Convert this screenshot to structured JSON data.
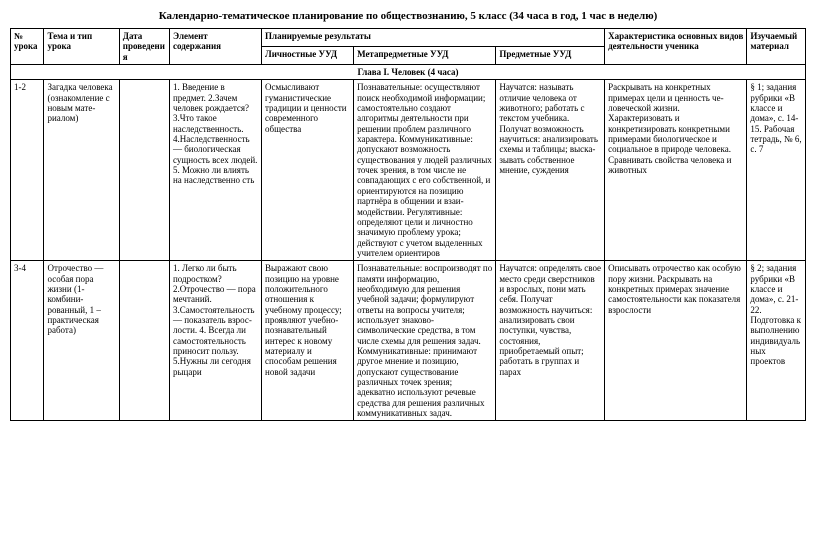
{
  "title": "Календарно-тематическое планирование по обществознанию, 5 класс  (34 часа в год, 1 час в неделю)",
  "headers": {
    "num": "№ урока",
    "topic": "Тема и тип урока",
    "date": "Дата проведения",
    "element": "Элемент содержания",
    "planned": "Планируемые результаты",
    "personal": "Личностные УУД",
    "meta": "Метапредметные УУД",
    "subject": "Предметные УУД",
    "activity": "Характеристика основных видов деятельности ученика",
    "material": "Изучаемый материал"
  },
  "chapter": "Глава I. Человек  (4 часа)",
  "rows": [
    {
      "num": "1-2",
      "topic": "Загадка че­ловека (ознакомление с новым мате­риалом)",
      "date": "",
      "element": "1.  Введение в предмет. 2.Зачем человек рождается? 3.Что такое наследственность. 4.Наследствен­ность — биологическая сущность всех лю­дей. 5. Можно ли влиять на  наследственно сть",
      "personal": "Осмысливают гуманистические традиции и цен­ности современ­ного общества",
      "meta": "Познавательные: осуществляют поиск необходимой информации; самостоятельно создают алгоритмы деятельности при решении проблем различного характера. Коммуникативные: допускают возможность существования у людей различных точек зрения, в том числе не совпадающих с его собственной, и ориентируются на позицию партнёра в общении и взаи­модействии.  Регулятивные: определяют цели и личностно значимую проблему урока; действуют с учетом выделенных учителем ориентиров",
      "subject": "Научатся: называть отличие человека от животного; работать с текстом учебника. Получат возможность научиться: анализировать схемы и таблицы; выска­зывать собственное мнение, суждения",
      "activity": "Раскрывать на конкретных примерах цели и ценность че­ловеческой жизни. Характеризовать и конкретизировать конкретными примерами биологическое и социальное в природе человека. Сравнивать свойства человека и животных",
      "material": "§ 1; за­дания рубрики «В классе и дома», с. 14-15. Рабочая тетрадь, № 6, с. 7"
    },
    {
      "num": "3-4",
      "topic": "Отрочество — особая пора жизни (1-комбини-рованный, 1 – практическая работа)",
      "date": "",
      "element": "1. Легко ли быть подростком? 2.Отрочество — пора мечтаний. 3.Самостоя­тельность — по­казатель взрос­лости. 4.  Всегда ли са­мостоятель­ность  приносит пользу. 5.Нужны ли се­годня рыцари",
      "personal": "Выражают свою позицию на уровне положительного отношения к учебному процессу; проявляют учебно-познавательный интерес к новому материалу и способам решения новой задачи",
      "meta": "Познавательные: воспроизводят по памяти информацию, необходимую для решения учебной задачи; формулируют ответы на вопросы учителя; использует знаково-символические средства, в том числе схемы для решения задач. Коммуникативные: принимают другое мнение и позицию, допускают существование различных точек зрения; адекватно используют речевые средства для решения различных коммуникативных задач.",
      "subject": "Научатся: определять свое место среди сверстников и взрослых, пони мать себя. Получат возможность научиться: анализировать свои поступки, чувства, состояния, приобретаемый опыт; работать в группах и парах",
      "activity": "Описывать отрочество как особую пору жизни.  Раскрывать на конкретных примерах значение самостоятельности как показателя взрослости",
      "material": "§ 2; за­дания рубрики «В классе и дома», с. 21-22. Подготовка к выполнению индивидуальных проектов"
    }
  ]
}
